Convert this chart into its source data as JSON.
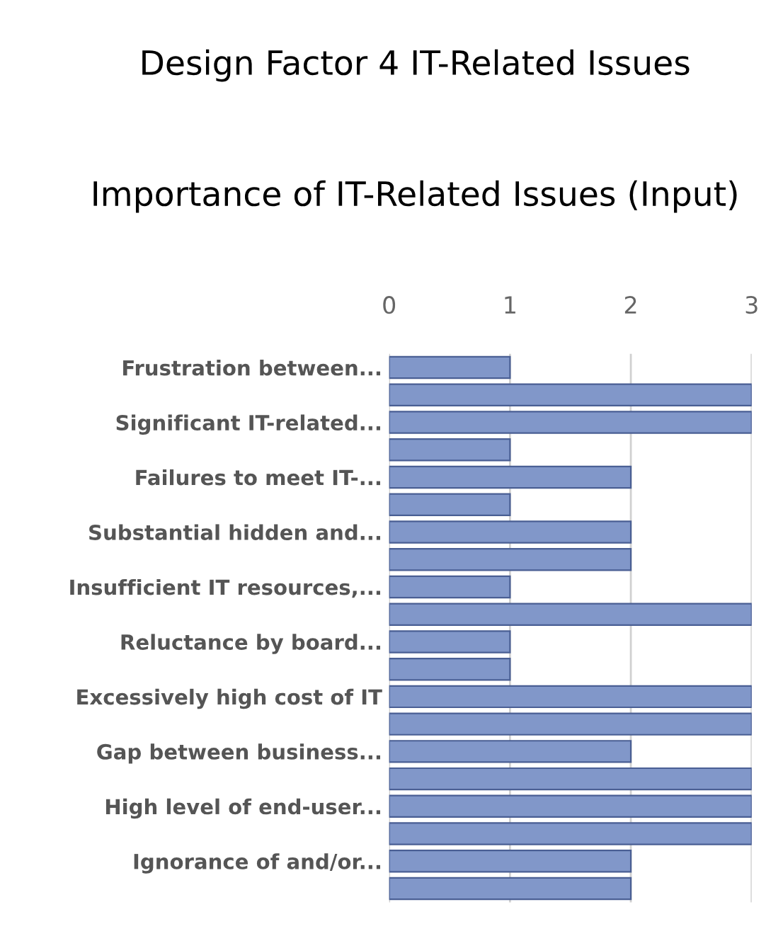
{
  "chart_data": {
    "type": "bar",
    "orientation": "horizontal",
    "title": "Design Factor 4 IT-Related Issues",
    "subtitle": "Importance of IT-Related Issues (Input)",
    "categories": [
      "Frustration between...",
      null,
      "Significant IT-related...",
      null,
      "Failures to meet IT-...",
      null,
      "Substantial hidden and...",
      null,
      "Insufficient IT resources,...",
      null,
      "Reluctance by board...",
      null,
      "Excessively high cost of IT",
      null,
      "Gap between business...",
      null,
      "High level of end-user...",
      null,
      "Ignorance of and/or...",
      null
    ],
    "values": [
      1,
      3,
      3,
      1,
      2,
      1,
      2,
      2,
      1,
      3,
      1,
      1,
      3,
      3,
      2,
      3,
      3,
      3,
      2,
      2
    ],
    "color": "#8197c9",
    "xlim": [
      0,
      3
    ],
    "xticks": [
      0,
      1,
      2,
      3
    ],
    "grid": "x"
  }
}
